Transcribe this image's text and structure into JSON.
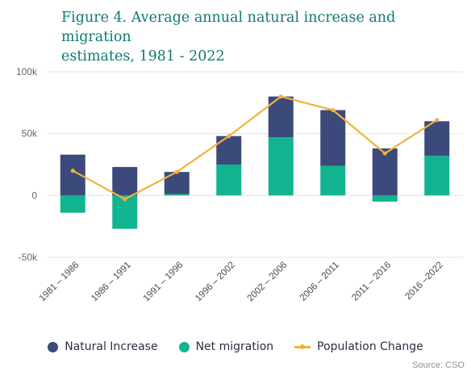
{
  "title": {
    "line1": "Figure 4. Average annual natural increase and migration",
    "line2": "estimates,  1981 - 2022"
  },
  "source": "Source: CSO",
  "colors": {
    "natural_increase": "#3b4a7a",
    "net_migration": "#12b48f",
    "population_change": "#f2b23c",
    "grid": "#e3e6ea"
  },
  "chart_data": {
    "type": "bar",
    "stacked": true,
    "categories": [
      "1981 – 1986",
      "1986 – 1991",
      "1991 – 1996",
      "1996 – 2002",
      "2002 – 2006",
      "2006 – 2011",
      "2011 – 2016",
      "2016 –2022"
    ],
    "series": [
      {
        "name": "Natural Increase",
        "type": "bar",
        "values": [
          33000,
          23000,
          18000,
          23000,
          33000,
          45000,
          38000,
          28000
        ]
      },
      {
        "name": "Net migration",
        "type": "bar",
        "values": [
          -14000,
          -27000,
          1000,
          25000,
          47000,
          24000,
          -5000,
          32000
        ]
      },
      {
        "name": "Population Change",
        "type": "line",
        "values": [
          20000,
          -3000,
          19000,
          48000,
          80000,
          69000,
          34000,
          61000
        ]
      }
    ],
    "ylim": [
      -50000,
      100000
    ],
    "yticks": [
      -50000,
      0,
      50000,
      100000
    ],
    "ytick_labels": [
      "-50k",
      "0",
      "50k",
      "100k"
    ],
    "grid": true,
    "legend_position": "bottom"
  }
}
